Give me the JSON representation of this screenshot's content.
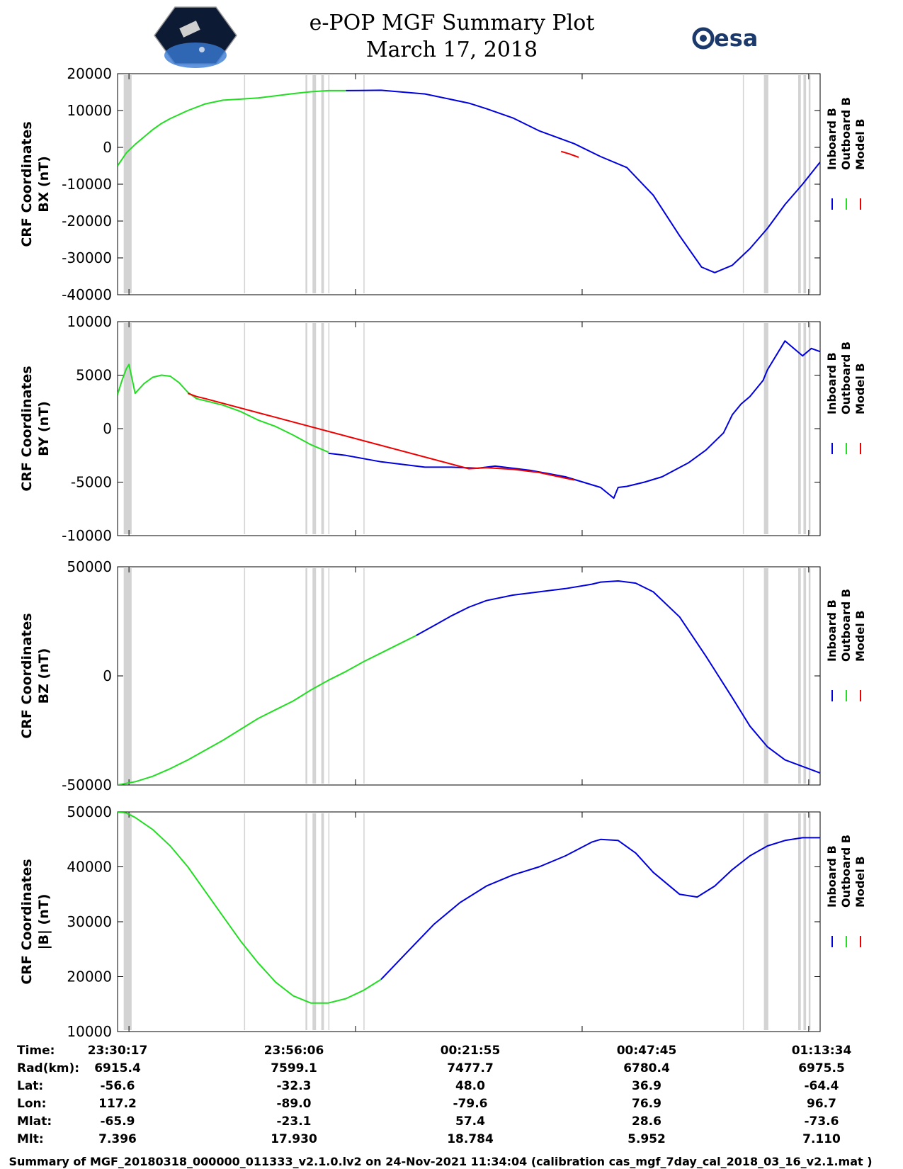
{
  "header": {
    "title": "e-POP MGF Summary Plot",
    "date": "March 17, 2018",
    "esa_logo_text": "esa"
  },
  "legend": {
    "inboard_label": "Inboard B",
    "outboard_label": "Outboard B",
    "model_label": "Model B",
    "inboard_color": "#0000dd",
    "outboard_color": "#22dd22",
    "model_color": "#ee0000"
  },
  "gap_color": "#d3d3d3",
  "gaps": [
    [
      0.7,
      1.6
    ],
    [
      14.4,
      14.5
    ],
    [
      21.4,
      21.6
    ],
    [
      22.2,
      22.6
    ],
    [
      23.2,
      23.5
    ],
    [
      24.0,
      24.1
    ],
    [
      28.0,
      28.1
    ],
    [
      71.2,
      71.3
    ],
    [
      73.6,
      74.1
    ],
    [
      77.5,
      77.8
    ],
    [
      78.1,
      78.4
    ],
    [
      78.7,
      78.9
    ]
  ],
  "chart_data": [
    {
      "type": "line",
      "ylabel_line1": "CRF Coordinates",
      "ylabel_line2": "BX (nT)",
      "ylim": [
        -40000,
        20000
      ],
      "yticks": [
        20000,
        10000,
        0,
        -10000,
        -20000,
        -30000,
        -40000
      ],
      "x_unit": "minutes since 23:29:00",
      "x_range": [
        0,
        80
      ],
      "series": [
        {
          "name": "Inboard B",
          "x": [
            26,
            30,
            35,
            40,
            42,
            45,
            48,
            52,
            55,
            58,
            61,
            64,
            66.5,
            68,
            70,
            72,
            74,
            76,
            78,
            80
          ],
          "y": [
            15400,
            15500,
            14500,
            12000,
            10500,
            8000,
            4500,
            1000,
            -2500,
            -5500,
            -13000,
            -24000,
            -32500,
            -34000,
            -32000,
            -27500,
            -22000,
            -15500,
            -10000,
            -4000
          ]
        },
        {
          "name": "Outboard B",
          "x": [
            0,
            1,
            2,
            3,
            4,
            5,
            6,
            8,
            10,
            12,
            14,
            16,
            18,
            20,
            22,
            24,
            26
          ],
          "y": [
            -5000,
            -1500,
            800,
            2800,
            4800,
            6500,
            7800,
            10000,
            11800,
            12800,
            13100,
            13400,
            14000,
            14600,
            15100,
            15400,
            15400
          ]
        },
        {
          "name": "Model B",
          "x": [
            50.5,
            51.5,
            52.5
          ],
          "y": [
            -1100,
            -1800,
            -2700
          ]
        }
      ]
    },
    {
      "type": "line",
      "ylabel_line1": "CRF Coordinates",
      "ylabel_line2": "BY (nT)",
      "ylim": [
        -10000,
        10000
      ],
      "yticks": [
        10000,
        5000,
        0,
        -5000,
        -10000
      ],
      "x_unit": "minutes since 23:29:00",
      "x_range": [
        0,
        80
      ],
      "series": [
        {
          "name": "Inboard B",
          "x": [
            24,
            26,
            28,
            30,
            35,
            38,
            41,
            42,
            43,
            45,
            47,
            49,
            51,
            53,
            55,
            56.5,
            57,
            58,
            60,
            62,
            65,
            67,
            69,
            70,
            71,
            72,
            73.5,
            74,
            76,
            78,
            79,
            80
          ],
          "y": [
            -2300,
            -2500,
            -2800,
            -3100,
            -3600,
            -3600,
            -3700,
            -3600,
            -3500,
            -3700,
            -3900,
            -4200,
            -4500,
            -5000,
            -5500,
            -6500,
            -5500,
            -5400,
            -5000,
            -4500,
            -3200,
            -2000,
            -400,
            1300,
            2300,
            3000,
            4500,
            5500,
            8200,
            6800,
            7500,
            7200
          ]
        },
        {
          "name": "Outboard B",
          "x": [
            0,
            0.5,
            1,
            1.3,
            2,
            3,
            4,
            5,
            6,
            7,
            8,
            9,
            10,
            12,
            14,
            15,
            16,
            18,
            20,
            22,
            24
          ],
          "y": [
            3200,
            4500,
            5600,
            6000,
            3300,
            4200,
            4800,
            5000,
            4900,
            4300,
            3400,
            2800,
            2600,
            2200,
            1600,
            1200,
            800,
            200,
            -600,
            -1500,
            -2200
          ]
        },
        {
          "name": "Model B",
          "x": [
            8,
            9,
            10,
            40,
            42,
            45,
            48,
            52
          ],
          "y": [
            3300,
            3000,
            2800,
            -3750,
            -3650,
            -3800,
            -4100,
            -4800
          ]
        }
      ]
    },
    {
      "type": "line",
      "ylabel_line1": "CRF Coordinates",
      "ylabel_line2": "BZ (nT)",
      "ylim": [
        -50000,
        50000
      ],
      "yticks": [
        50000,
        0,
        -50000
      ],
      "x_unit": "minutes since 23:29:00",
      "x_range": [
        0,
        80
      ],
      "series": [
        {
          "name": "Inboard B",
          "x": [
            34,
            36,
            38,
            40,
            42,
            45,
            48,
            51,
            54,
            55,
            57,
            59,
            61,
            64,
            67,
            70,
            72,
            74,
            76,
            78,
            80
          ],
          "y": [
            18500,
            23000,
            27500,
            31500,
            34500,
            37000,
            38500,
            40000,
            42000,
            43000,
            43500,
            42500,
            38500,
            27000,
            9000,
            -10000,
            -23000,
            -32500,
            -38500,
            -41500,
            -44500
          ]
        },
        {
          "name": "Outboard B",
          "x": [
            0,
            2,
            4,
            6,
            8,
            10,
            12,
            14,
            16,
            18,
            20,
            22,
            24,
            26,
            28,
            30,
            32,
            34
          ],
          "y": [
            -50000,
            -48500,
            -46000,
            -42500,
            -38500,
            -34000,
            -29500,
            -24500,
            -19500,
            -15500,
            -11500,
            -6500,
            -2000,
            2000,
            6500,
            10500,
            14500,
            18500
          ]
        },
        {
          "name": "Model B",
          "x": [],
          "y": []
        }
      ]
    },
    {
      "type": "line",
      "ylabel_line1": "CRF Coordinates",
      "ylabel_line2": "|B| (nT)",
      "ylim": [
        10000,
        50000
      ],
      "yticks": [
        50000,
        40000,
        30000,
        20000,
        10000
      ],
      "x_unit": "minutes since 23:29:00",
      "x_range": [
        0,
        80
      ],
      "series": [
        {
          "name": "Inboard B",
          "x": [
            30,
            33,
            36,
            39,
            42,
            45,
            48,
            51,
            54,
            55,
            57,
            59,
            61,
            64,
            66,
            68,
            70,
            72,
            74,
            76,
            78,
            80
          ],
          "y": [
            19500,
            24500,
            29500,
            33500,
            36500,
            38500,
            40000,
            42000,
            44500,
            45000,
            44800,
            42500,
            39000,
            35000,
            34500,
            36500,
            39500,
            42000,
            43800,
            44800,
            45300,
            45300
          ]
        },
        {
          "name": "Outboard B",
          "x": [
            0,
            1,
            2,
            4,
            6,
            8,
            10,
            12,
            14,
            16,
            18,
            20,
            22,
            24,
            26,
            28,
            30
          ],
          "y": [
            50000,
            49800,
            49000,
            46800,
            43800,
            40000,
            35500,
            31000,
            26500,
            22500,
            19000,
            16500,
            15200,
            15200,
            16000,
            17500,
            19500
          ]
        },
        {
          "name": "Model B",
          "x": [],
          "y": []
        }
      ]
    }
  ],
  "time_axis": {
    "tick_x": [
      1.3,
      27.1,
      52.9,
      78.7,
      104.5
    ],
    "row_labels": [
      "Time:",
      "Rad(km):",
      "Lat:",
      "Lon:",
      "Mlat:",
      "Mlt:"
    ],
    "columns": [
      {
        "time": "23:30:17",
        "rad": "6915.4",
        "lat": "-56.6",
        "lon": "117.2",
        "mlat": "-65.9",
        "mlt": "7.396"
      },
      {
        "time": "23:56:06",
        "rad": "7599.1",
        "lat": "-32.3",
        "lon": "-89.0",
        "mlat": "-23.1",
        "mlt": "17.930"
      },
      {
        "time": "00:21:55",
        "rad": "7477.7",
        "lat": "48.0",
        "lon": "-79.6",
        "mlat": "57.4",
        "mlt": "18.784"
      },
      {
        "time": "00:47:45",
        "rad": "6780.4",
        "lat": "36.9",
        "lon": "76.9",
        "mlat": "28.6",
        "mlt": "5.952"
      },
      {
        "time": "01:13:34",
        "rad": "6975.5",
        "lat": "-64.4",
        "lon": "96.7",
        "mlat": "-73.6",
        "mlt": "7.110"
      }
    ]
  },
  "footer": {
    "text": "Summary of MGF_20180318_000000_011333_v2.1.0.lv2 on 24-Nov-2021 11:34:04 (calibration cas_mgf_7day_cal_2018_03_16_v2.1.mat )"
  }
}
